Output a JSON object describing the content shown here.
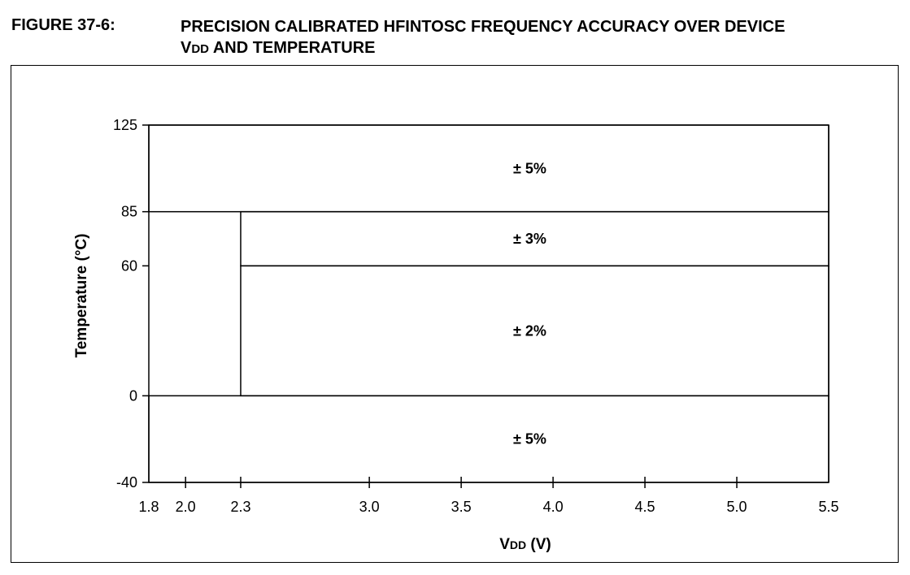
{
  "figure": {
    "label": "FIGURE 37-6:",
    "title_prefix": "PRECISION CALIBRATED HFINTOSC FREQUENCY ACCURACY OVER DEVICE",
    "title_v": "V",
    "title_sub": "DD",
    "title_suffix": " AND TEMPERATURE"
  },
  "chart_data": {
    "type": "region-map",
    "xlabel": {
      "main": "V",
      "sub": "DD",
      "unit": " (V)"
    },
    "ylabel": "Temperature (°C)",
    "xlim": [
      1.8,
      5.5
    ],
    "ylim": [
      -40,
      125
    ],
    "x_ticks": [
      1.8,
      2.0,
      2.3,
      3.0,
      3.5,
      4.0,
      4.5,
      5.0,
      5.5
    ],
    "x_tick_labels": [
      "1.8",
      "2.0",
      "2.3",
      "3.0",
      "3.5",
      "4.0",
      "4.5",
      "5.0",
      "5.5"
    ],
    "y_ticks": [
      -40,
      0,
      60,
      85,
      125
    ],
    "y_tick_labels": [
      "-40",
      "0",
      "60",
      "85",
      "125"
    ],
    "regions": [
      {
        "label": "± 5%",
        "x": [
          1.8,
          5.5
        ],
        "y": [
          85,
          125
        ]
      },
      {
        "label": "± 3%",
        "x": [
          2.3,
          5.5
        ],
        "y": [
          60,
          85
        ]
      },
      {
        "label": "± 2%",
        "x": [
          2.3,
          5.5
        ],
        "y": [
          0,
          60
        ]
      },
      {
        "label": "± 5%",
        "x": [
          1.8,
          5.5
        ],
        "y": [
          -40,
          0
        ]
      }
    ],
    "grid": false,
    "legend": "none"
  }
}
